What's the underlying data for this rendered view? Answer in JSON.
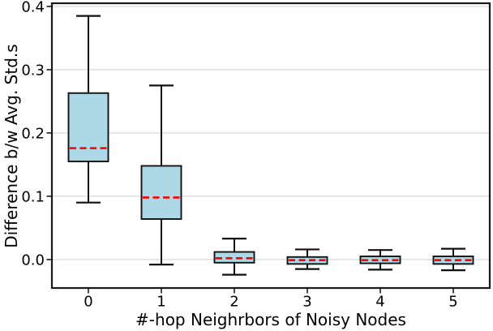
{
  "chart_data": {
    "type": "box",
    "title": "",
    "xlabel": "#-hop Neighrbors of Noisy Nodes",
    "ylabel": "Difference b/w Avg. Std.s",
    "categories": [
      "0",
      "1",
      "2",
      "3",
      "4",
      "5"
    ],
    "y_ticks": [
      0.0,
      0.1,
      0.2,
      0.3,
      0.4
    ],
    "y_tick_labels": [
      "0.0",
      "0.1",
      "0.2",
      "0.3",
      "0.4"
    ],
    "ylim": [
      -0.045,
      0.405
    ],
    "grid": "horizontal-only",
    "legend": "none",
    "boxes": [
      {
        "category": "0",
        "whisker_low": 0.09,
        "q1": 0.155,
        "median": 0.176,
        "q3": 0.263,
        "whisker_high": 0.385
      },
      {
        "category": "1",
        "whisker_low": -0.008,
        "q1": 0.064,
        "median": 0.098,
        "q3": 0.148,
        "whisker_high": 0.275
      },
      {
        "category": "2",
        "whisker_low": -0.024,
        "q1": -0.005,
        "median": 0.002,
        "q3": 0.012,
        "whisker_high": 0.033
      },
      {
        "category": "3",
        "whisker_low": -0.015,
        "q1": -0.007,
        "median": -0.001,
        "q3": 0.004,
        "whisker_high": 0.016
      },
      {
        "category": "4",
        "whisker_low": -0.016,
        "q1": -0.006,
        "median": -0.001,
        "q3": 0.005,
        "whisker_high": 0.015
      },
      {
        "category": "5",
        "whisker_low": -0.017,
        "q1": -0.007,
        "median": -0.001,
        "q3": 0.005,
        "whisker_high": 0.017
      }
    ],
    "median_style": "dashed",
    "colors": {
      "box_fill": "#ADD8E6",
      "box_edge": "#111111",
      "whisker": "#111111",
      "median": "#FF0000",
      "grid": "#D8D8D8",
      "frame": "#1a1a1a",
      "background": "#FFFFFF",
      "text": "#000000"
    }
  }
}
